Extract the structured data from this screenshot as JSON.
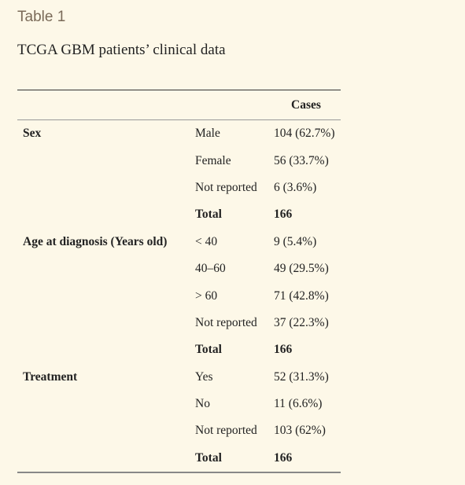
{
  "table_label": "Table 1",
  "caption": "TCGA GBM patients’ clinical data",
  "header": {
    "col1": "",
    "col2": "",
    "col3": "Cases"
  },
  "rows": [
    {
      "group": "Sex",
      "category": "Male",
      "cases": "104 (62.7%)",
      "total": false
    },
    {
      "group": "",
      "category": "Female",
      "cases": "56 (33.7%)",
      "total": false
    },
    {
      "group": "",
      "category": "Not reported",
      "cases": "6 (3.6%)",
      "total": false
    },
    {
      "group": "",
      "category": "Total",
      "cases": "166",
      "total": true
    },
    {
      "group": "Age at diagnosis (Years old)",
      "category": "< 40",
      "cases": "9 (5.4%)",
      "total": false
    },
    {
      "group": "",
      "category": "40–60",
      "cases": "49 (29.5%)",
      "total": false
    },
    {
      "group": "",
      "category": "> 60",
      "cases": "71 (42.8%)",
      "total": false
    },
    {
      "group": "",
      "category": "Not reported",
      "cases": "37 (22.3%)",
      "total": false
    },
    {
      "group": "",
      "category": "Total",
      "cases": "166",
      "total": true
    },
    {
      "group": "Treatment",
      "category": "Yes",
      "cases": "52 (31.3%)",
      "total": false
    },
    {
      "group": "",
      "category": "No",
      "cases": "11 (6.6%)",
      "total": false
    },
    {
      "group": "",
      "category": "Not reported",
      "cases": "103 (62%)",
      "total": false
    },
    {
      "group": "",
      "category": "Total",
      "cases": "166",
      "total": true
    }
  ]
}
